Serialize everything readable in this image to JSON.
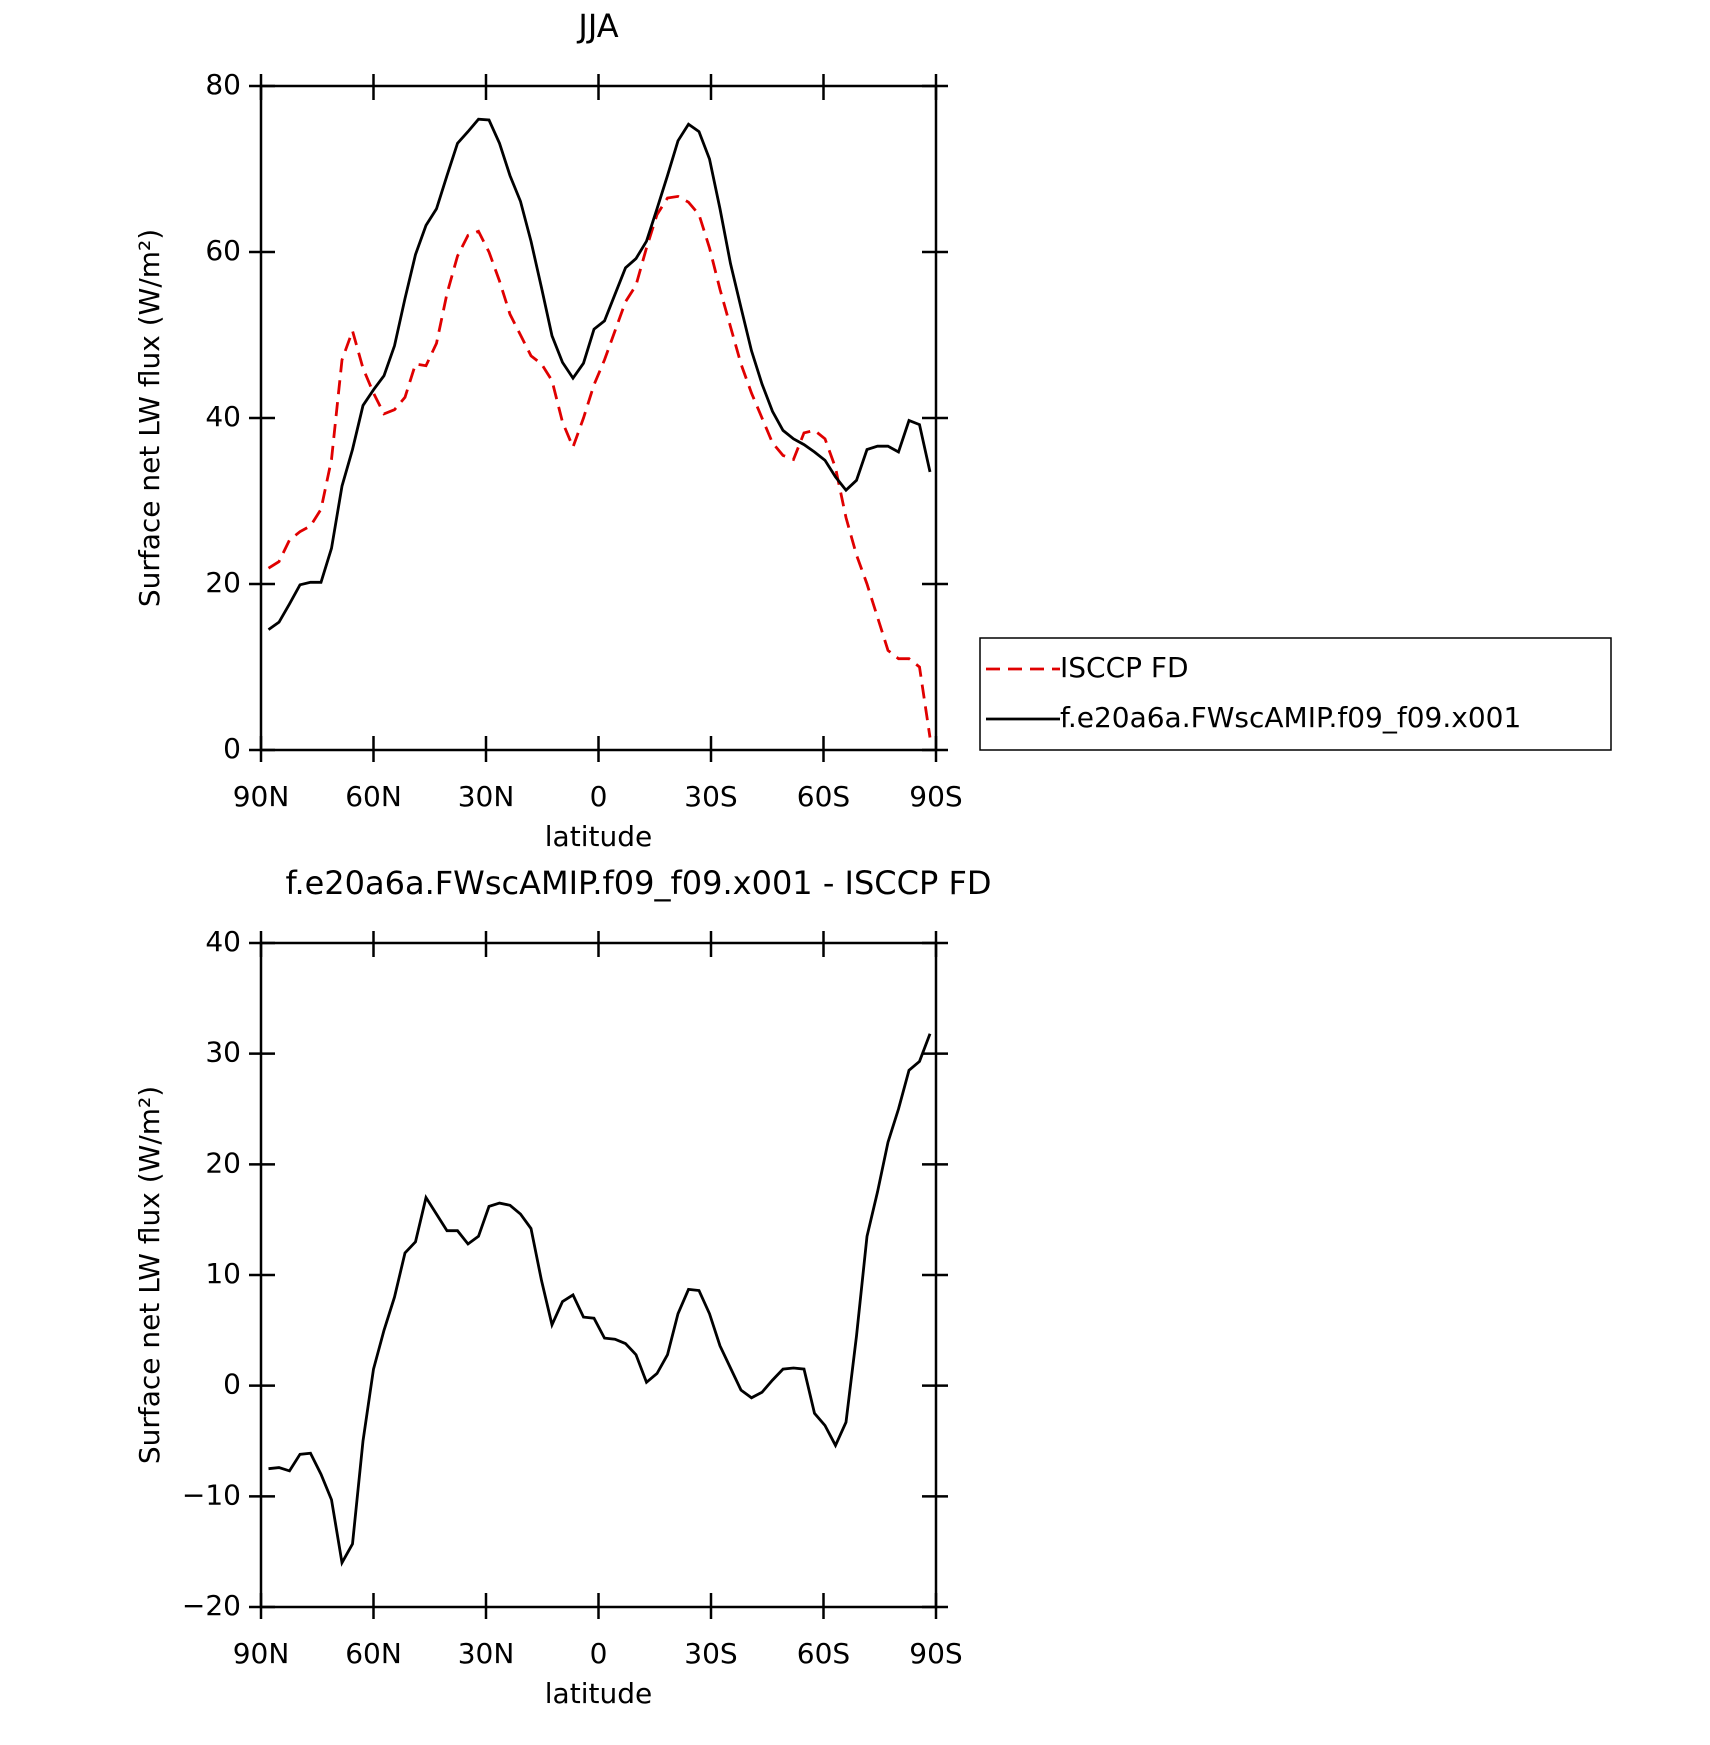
{
  "chart_data": [
    {
      "type": "line",
      "title": "JJA",
      "xlabel": "latitude",
      "ylabel": "Surface net LW flux (W/m²)",
      "x": [
        88,
        85.2,
        82.4,
        79.6,
        76.8,
        74,
        71.2,
        68.4,
        65.6,
        62.8,
        60,
        57.2,
        54.4,
        51.6,
        48.8,
        46,
        43.2,
        40.4,
        37.6,
        34.8,
        32,
        29.2,
        26.4,
        23.6,
        20.8,
        18,
        15.2,
        12.4,
        9.6,
        6.8,
        4,
        1.2,
        -1.6,
        -4.4,
        -7.2,
        -10,
        -12.8,
        -15.6,
        -18.4,
        -21.2,
        -24,
        -26.8,
        -29.6,
        -32.4,
        -35.2,
        -38,
        -40.8,
        -43.6,
        -46.4,
        -49.2,
        -52,
        -54.8,
        -57.6,
        -60.4,
        -63.2,
        -66,
        -68.8,
        -71.6,
        -74.4,
        -77.2,
        -80,
        -82.8,
        -85.6,
        -88.4
      ],
      "series": [
        {
          "name": "ISCCP FD",
          "color": "#e00000",
          "line_style": "dashed",
          "values": [
            21.9,
            22.7,
            25.3,
            26.3,
            27,
            29,
            35,
            47,
            50.5,
            46,
            43,
            40.5,
            41,
            42.5,
            46.5,
            46.3,
            49,
            55,
            59.5,
            62,
            62.5,
            60,
            56.5,
            52.5,
            50,
            47.5,
            46.5,
            44.5,
            39.5,
            36.5,
            40,
            44,
            47,
            50.5,
            54,
            56,
            60.5,
            64.5,
            66.5,
            66.7,
            66,
            64.5,
            60.5,
            55.5,
            51,
            46.5,
            43,
            40,
            37,
            35.5,
            35,
            38.2,
            38.5,
            37.5,
            34,
            28,
            23.5,
            20,
            16,
            12,
            11,
            11,
            10,
            1.5
          ]
        },
        {
          "name": "f.e20a6a.FWscAMIP.f09_f09.x001",
          "color": "#000000",
          "line_style": "solid",
          "values": [
            14.5,
            15.4,
            17.6,
            19.9,
            20.2,
            20.2,
            24.3,
            31.8,
            36.2,
            41.5,
            43.4,
            45.1,
            48.7,
            54.4,
            59.7,
            63.2,
            65.2,
            69.2,
            73.1,
            74.5,
            76.0,
            75.9,
            73.1,
            69.2,
            66.1,
            61.3,
            55.7,
            49.9,
            46.7,
            44.8,
            46.6,
            50.7,
            51.7,
            54.9,
            58.1,
            59.2,
            61.3,
            65.2,
            69.2,
            73.4,
            75.4,
            74.5,
            71.2,
            65.2,
            58.6,
            53.3,
            48.1,
            44.1,
            40.8,
            38.5,
            37.5,
            36.8,
            35.9,
            34.9,
            32.9,
            31.3,
            32.5,
            36.2,
            36.6,
            36.6,
            35.9,
            39.7,
            39.2,
            33.5
          ]
        }
      ],
      "xlim": [
        90,
        -90
      ],
      "ylim": [
        0,
        80
      ],
      "xticks": [
        {
          "value": 90,
          "label": "90N"
        },
        {
          "value": 60,
          "label": "60N"
        },
        {
          "value": 30,
          "label": "30N"
        },
        0,
        {
          "value": -30,
          "label": "30S"
        },
        {
          "value": -60,
          "label": "60S"
        },
        {
          "value": -90,
          "label": "90S"
        }
      ],
      "yticks": [
        0,
        20,
        40,
        60,
        80
      ],
      "legend": "right"
    },
    {
      "type": "line",
      "title": "f.e20a6a.FWscAMIP.f09_f09.x001 - ISCCP FD",
      "xlabel": "latitude",
      "ylabel": "Surface net LW flux (W/m²)",
      "x": [
        88,
        85.2,
        82.4,
        79.6,
        76.8,
        74,
        71.2,
        68.4,
        65.6,
        62.8,
        60,
        57.2,
        54.4,
        51.6,
        48.8,
        46,
        43.2,
        40.4,
        37.6,
        34.8,
        32,
        29.2,
        26.4,
        23.6,
        20.8,
        18,
        15.2,
        12.4,
        9.6,
        6.8,
        4,
        1.2,
        -1.6,
        -4.4,
        -7.2,
        -10,
        -12.8,
        -15.6,
        -18.4,
        -21.2,
        -24,
        -26.8,
        -29.6,
        -32.4,
        -35.2,
        -38,
        -40.8,
        -43.6,
        -46.4,
        -49.2,
        -52,
        -54.8,
        -57.6,
        -60.4,
        -63.2,
        -66,
        -68.8,
        -71.6,
        -74.4,
        -77.2,
        -80,
        -82.8,
        -85.6,
        -88.4
      ],
      "series": [
        {
          "color": "#000000",
          "line_style": "solid",
          "values": [
            -7.5,
            -7.4,
            -7.7,
            -6.2,
            -6.1,
            -8,
            -10.3,
            -16,
            -14.3,
            -5,
            1.5,
            5,
            8,
            12,
            13,
            17,
            15.5,
            14,
            14,
            12.8,
            13.5,
            16.2,
            16.5,
            16.3,
            15.5,
            14.2,
            9.5,
            5.5,
            7.6,
            8.2,
            6.2,
            6.1,
            4.3,
            4.2,
            3.8,
            2.8,
            0.3,
            1.1,
            2.8,
            6.5,
            8.7,
            8.6,
            6.5,
            3.6,
            1.6,
            -0.4,
            -1.1,
            -0.6,
            0.5,
            1.5,
            1.6,
            1.5,
            -2.5,
            -3.6,
            -5.4,
            -3.3,
            4.5,
            13.5,
            17.5,
            22,
            25,
            28.5,
            29.3,
            31.8
          ]
        }
      ],
      "xlim": [
        90,
        -90
      ],
      "ylim": [
        -20,
        40
      ],
      "xticks": [
        {
          "value": 90,
          "label": "90N"
        },
        {
          "value": 60,
          "label": "60N"
        },
        {
          "value": 30,
          "label": "30N"
        },
        0,
        {
          "value": -30,
          "label": "30S"
        },
        {
          "value": -60,
          "label": "60S"
        },
        {
          "value": -90,
          "label": "90S"
        }
      ],
      "yticks": [
        {
          "value": -20,
          "label": "−20"
        },
        {
          "value": -10,
          "label": "−10"
        },
        0,
        10,
        20,
        30,
        40
      ]
    }
  ]
}
